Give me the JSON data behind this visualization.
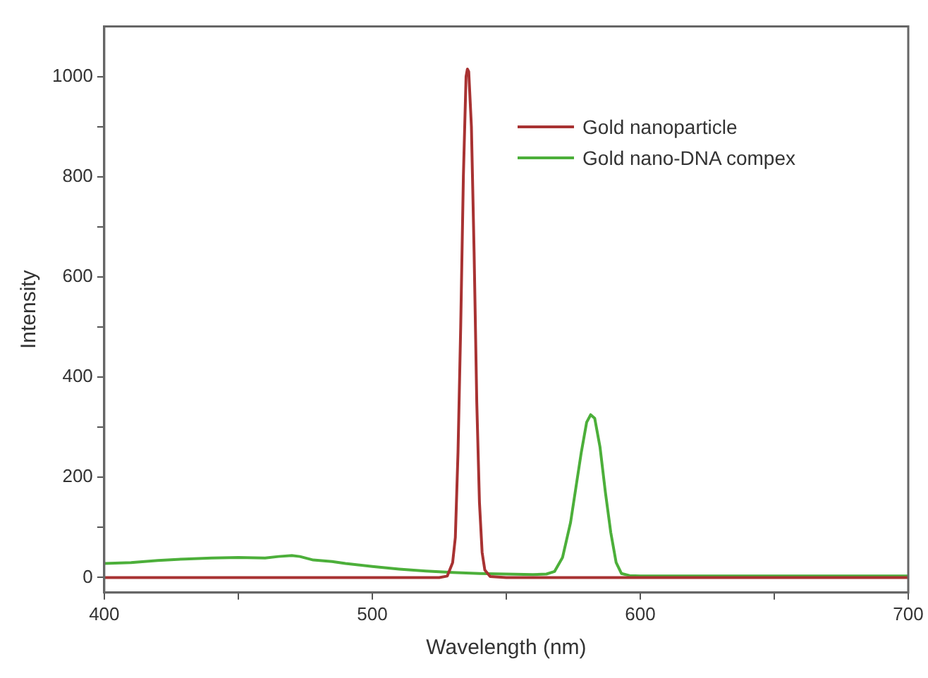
{
  "chart_data": {
    "type": "line",
    "xlabel": "Wavelength (nm)",
    "ylabel": "Intensity",
    "xlim": [
      400,
      700
    ],
    "xticks": [
      400,
      {
        "value": 450,
        "label": null
      },
      500,
      {
        "value": 550,
        "label": null
      },
      600,
      {
        "value": 650,
        "label": null
      },
      700
    ],
    "ylim": [
      -30,
      1100
    ],
    "yticks": [
      0,
      {
        "value": 100,
        "label": null
      },
      200,
      {
        "value": 300,
        "label": null
      },
      400,
      {
        "value": 500,
        "label": null
      },
      600,
      {
        "value": 700,
        "label": null
      },
      800,
      {
        "value": 900,
        "label": null
      },
      1000
    ],
    "grid": false,
    "legend": "top right",
    "marker": "none",
    "line_style": "solid",
    "series": [
      {
        "name": "Gold nanoparticle",
        "color": "#a83232",
        "x": [
          400,
          525,
          528,
          530,
          531,
          532,
          533,
          534,
          535,
          535.5,
          536,
          537,
          538,
          539,
          540,
          541,
          542,
          544,
          550,
          700
        ],
        "values": [
          0,
          0,
          3,
          30,
          80,
          250,
          500,
          800,
          1000,
          1015,
          1010,
          900,
          650,
          350,
          150,
          50,
          15,
          2,
          0,
          0
        ]
      },
      {
        "name": "Gold nano-DNA compex",
        "color": "#4caf3a",
        "x": [
          400,
          410,
          420,
          430,
          440,
          450,
          460,
          465,
          470,
          473,
          478,
          485,
          490,
          500,
          510,
          520,
          530,
          540,
          550,
          560,
          565,
          568,
          571,
          574,
          576,
          578,
          580,
          581.5,
          583,
          585,
          587,
          589,
          591,
          593,
          596,
          600,
          650,
          700
        ],
        "values": [
          28,
          30,
          34,
          37,
          39,
          40,
          39,
          42,
          44,
          42,
          35,
          32,
          28,
          22,
          17,
          13,
          10,
          8,
          7,
          6,
          7,
          12,
          40,
          110,
          180,
          250,
          310,
          325,
          318,
          260,
          170,
          90,
          30,
          8,
          4,
          3,
          3,
          3
        ]
      }
    ]
  }
}
